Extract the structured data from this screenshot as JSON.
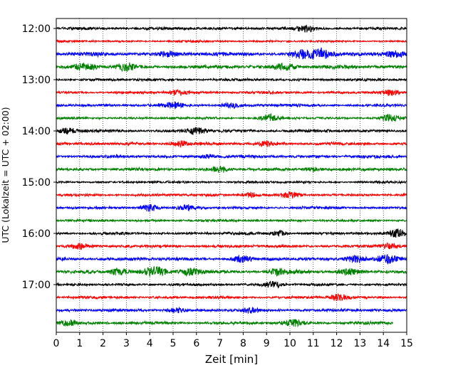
{
  "chart_data": {
    "type": "line",
    "chart_kind": "helicorder seismogram",
    "xlabel": "Zeit  [min]",
    "ylabel": "UTC (Lokalzeit = UTC + 02:00)",
    "xlim": [
      0,
      15
    ],
    "x_ticks": [
      "0",
      "1",
      "2",
      "3",
      "4",
      "5",
      "6",
      "7",
      "8",
      "9",
      "10",
      "11",
      "12",
      "13",
      "14",
      "15"
    ],
    "y_ticks": [
      "12:00",
      "13:00",
      "14:00",
      "15:00",
      "16:00",
      "17:00"
    ],
    "y_tick_positions_hours": [
      12,
      13,
      14,
      15,
      16,
      17
    ],
    "start_time": "12:00",
    "trace_interval_min": 15,
    "trace_count": 24,
    "vertical_grid": "dotted, every 1 min",
    "color_cycle": [
      "#000000",
      "#ff0000",
      "#0000ff",
      "#008000"
    ],
    "last_trace_end_min": 14.4,
    "traces": [
      {
        "start": "12:00",
        "color": "#000000",
        "amplitude": 0.45,
        "events": [
          {
            "t": 10.7,
            "amp": 0.9
          }
        ]
      },
      {
        "start": "12:15",
        "color": "#ff0000",
        "amplitude": 0.3,
        "events": []
      },
      {
        "start": "12:30",
        "color": "#0000ff",
        "amplitude": 0.6,
        "events": [
          {
            "t": 4.8,
            "amp": 0.7
          },
          {
            "t": 10.5,
            "amp": 1.0
          },
          {
            "t": 11.3,
            "amp": 1.5
          },
          {
            "t": 14.5,
            "amp": 1.1
          }
        ]
      },
      {
        "start": "12:45",
        "color": "#008000",
        "amplitude": 0.55,
        "events": [
          {
            "t": 1.2,
            "amp": 1.2
          },
          {
            "t": 3.0,
            "amp": 0.9
          },
          {
            "t": 9.8,
            "amp": 1.1
          }
        ]
      },
      {
        "start": "13:00",
        "color": "#000000",
        "amplitude": 0.4,
        "events": []
      },
      {
        "start": "13:15",
        "color": "#ff0000",
        "amplitude": 0.4,
        "events": [
          {
            "t": 5.2,
            "amp": 0.9
          },
          {
            "t": 14.3,
            "amp": 0.8
          }
        ]
      },
      {
        "start": "13:30",
        "color": "#0000ff",
        "amplitude": 0.45,
        "events": [
          {
            "t": 5.0,
            "amp": 0.8
          },
          {
            "t": 7.5,
            "amp": 0.7
          }
        ]
      },
      {
        "start": "13:45",
        "color": "#008000",
        "amplitude": 0.35,
        "events": [
          {
            "t": 9.1,
            "amp": 1.1
          },
          {
            "t": 14.3,
            "amp": 1.1
          }
        ]
      },
      {
        "start": "14:00",
        "color": "#000000",
        "amplitude": 0.45,
        "events": [
          {
            "t": 0.5,
            "amp": 0.8
          },
          {
            "t": 6.0,
            "amp": 1.0
          }
        ]
      },
      {
        "start": "14:15",
        "color": "#ff0000",
        "amplitude": 0.45,
        "events": [
          {
            "t": 5.3,
            "amp": 0.9
          },
          {
            "t": 9.0,
            "amp": 0.7
          }
        ]
      },
      {
        "start": "14:30",
        "color": "#0000ff",
        "amplitude": 0.45,
        "events": [
          {
            "t": 6.5,
            "amp": 0.6
          }
        ]
      },
      {
        "start": "14:45",
        "color": "#008000",
        "amplitude": 0.45,
        "events": [
          {
            "t": 7.0,
            "amp": 0.8
          },
          {
            "t": 11.0,
            "amp": 0.7
          }
        ]
      },
      {
        "start": "15:00",
        "color": "#000000",
        "amplitude": 0.35,
        "events": []
      },
      {
        "start": "15:15",
        "color": "#ff0000",
        "amplitude": 0.4,
        "events": [
          {
            "t": 8.3,
            "amp": 0.7
          },
          {
            "t": 10.0,
            "amp": 0.8
          }
        ]
      },
      {
        "start": "15:30",
        "color": "#0000ff",
        "amplitude": 0.4,
        "events": [
          {
            "t": 4.0,
            "amp": 1.1
          },
          {
            "t": 5.6,
            "amp": 0.7
          }
        ]
      },
      {
        "start": "15:45",
        "color": "#008000",
        "amplitude": 0.35,
        "events": []
      },
      {
        "start": "16:00",
        "color": "#000000",
        "amplitude": 0.4,
        "events": [
          {
            "t": 9.5,
            "amp": 0.8
          },
          {
            "t": 14.6,
            "amp": 1.2
          }
        ]
      },
      {
        "start": "16:15",
        "color": "#ff0000",
        "amplitude": 0.45,
        "events": [
          {
            "t": 1.0,
            "amp": 0.8
          },
          {
            "t": 14.3,
            "amp": 0.8
          }
        ]
      },
      {
        "start": "16:30",
        "color": "#0000ff",
        "amplitude": 0.5,
        "events": [
          {
            "t": 7.9,
            "amp": 0.9
          },
          {
            "t": 12.8,
            "amp": 1.1
          },
          {
            "t": 14.2,
            "amp": 1.2
          }
        ]
      },
      {
        "start": "16:45",
        "color": "#008000",
        "amplitude": 0.55,
        "events": [
          {
            "t": 2.7,
            "amp": 1.1
          },
          {
            "t": 4.2,
            "amp": 1.3
          },
          {
            "t": 5.8,
            "amp": 1.1
          },
          {
            "t": 9.5,
            "amp": 0.9
          },
          {
            "t": 12.5,
            "amp": 1.0
          }
        ]
      },
      {
        "start": "17:00",
        "color": "#000000",
        "amplitude": 0.4,
        "events": [
          {
            "t": 9.3,
            "amp": 0.9
          }
        ]
      },
      {
        "start": "17:15",
        "color": "#ff0000",
        "amplitude": 0.4,
        "events": [
          {
            "t": 12.1,
            "amp": 0.9
          }
        ]
      },
      {
        "start": "17:30",
        "color": "#0000ff",
        "amplitude": 0.45,
        "events": [
          {
            "t": 5.1,
            "amp": 0.8
          },
          {
            "t": 8.3,
            "amp": 0.7
          }
        ]
      },
      {
        "start": "17:45",
        "color": "#008000",
        "amplitude": 0.45,
        "events": [
          {
            "t": 0.5,
            "amp": 0.9
          },
          {
            "t": 10.2,
            "amp": 1.0
          }
        ]
      }
    ]
  }
}
